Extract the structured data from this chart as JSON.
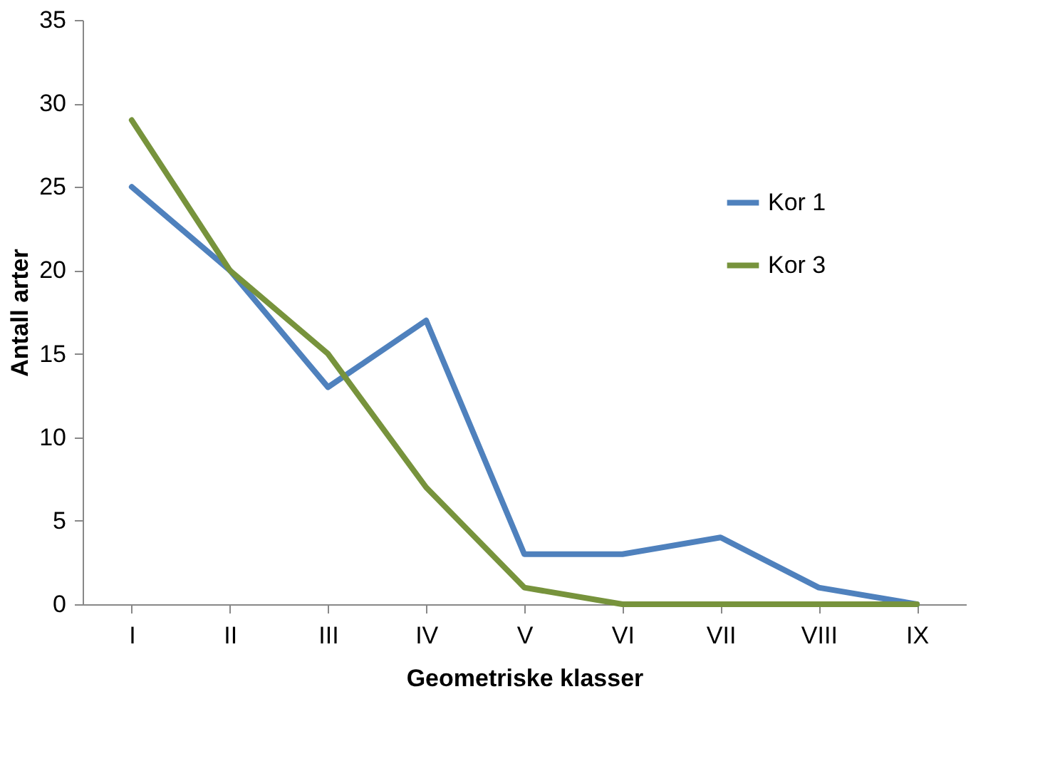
{
  "chart_data": {
    "type": "line",
    "xlabel": "Geometriske klasser",
    "ylabel": "Antall arter",
    "categories": [
      "I",
      "II",
      "III",
      "IV",
      "V",
      "VI",
      "VII",
      "VIII",
      "IX"
    ],
    "series": [
      {
        "name": "Kor 1",
        "color": "#4f81bd",
        "values": [
          25,
          20,
          13,
          17,
          3,
          3,
          4,
          1,
          0
        ]
      },
      {
        "name": "Kor 3",
        "color": "#77933c",
        "values": [
          29,
          20,
          15,
          7,
          1,
          0,
          0,
          0,
          0
        ]
      }
    ],
    "ylim": [
      0,
      35
    ],
    "yticks": [
      0,
      5,
      10,
      15,
      20,
      25,
      30,
      35
    ],
    "grid": false,
    "legend": "right",
    "marker": "none",
    "line_style": "solid"
  }
}
